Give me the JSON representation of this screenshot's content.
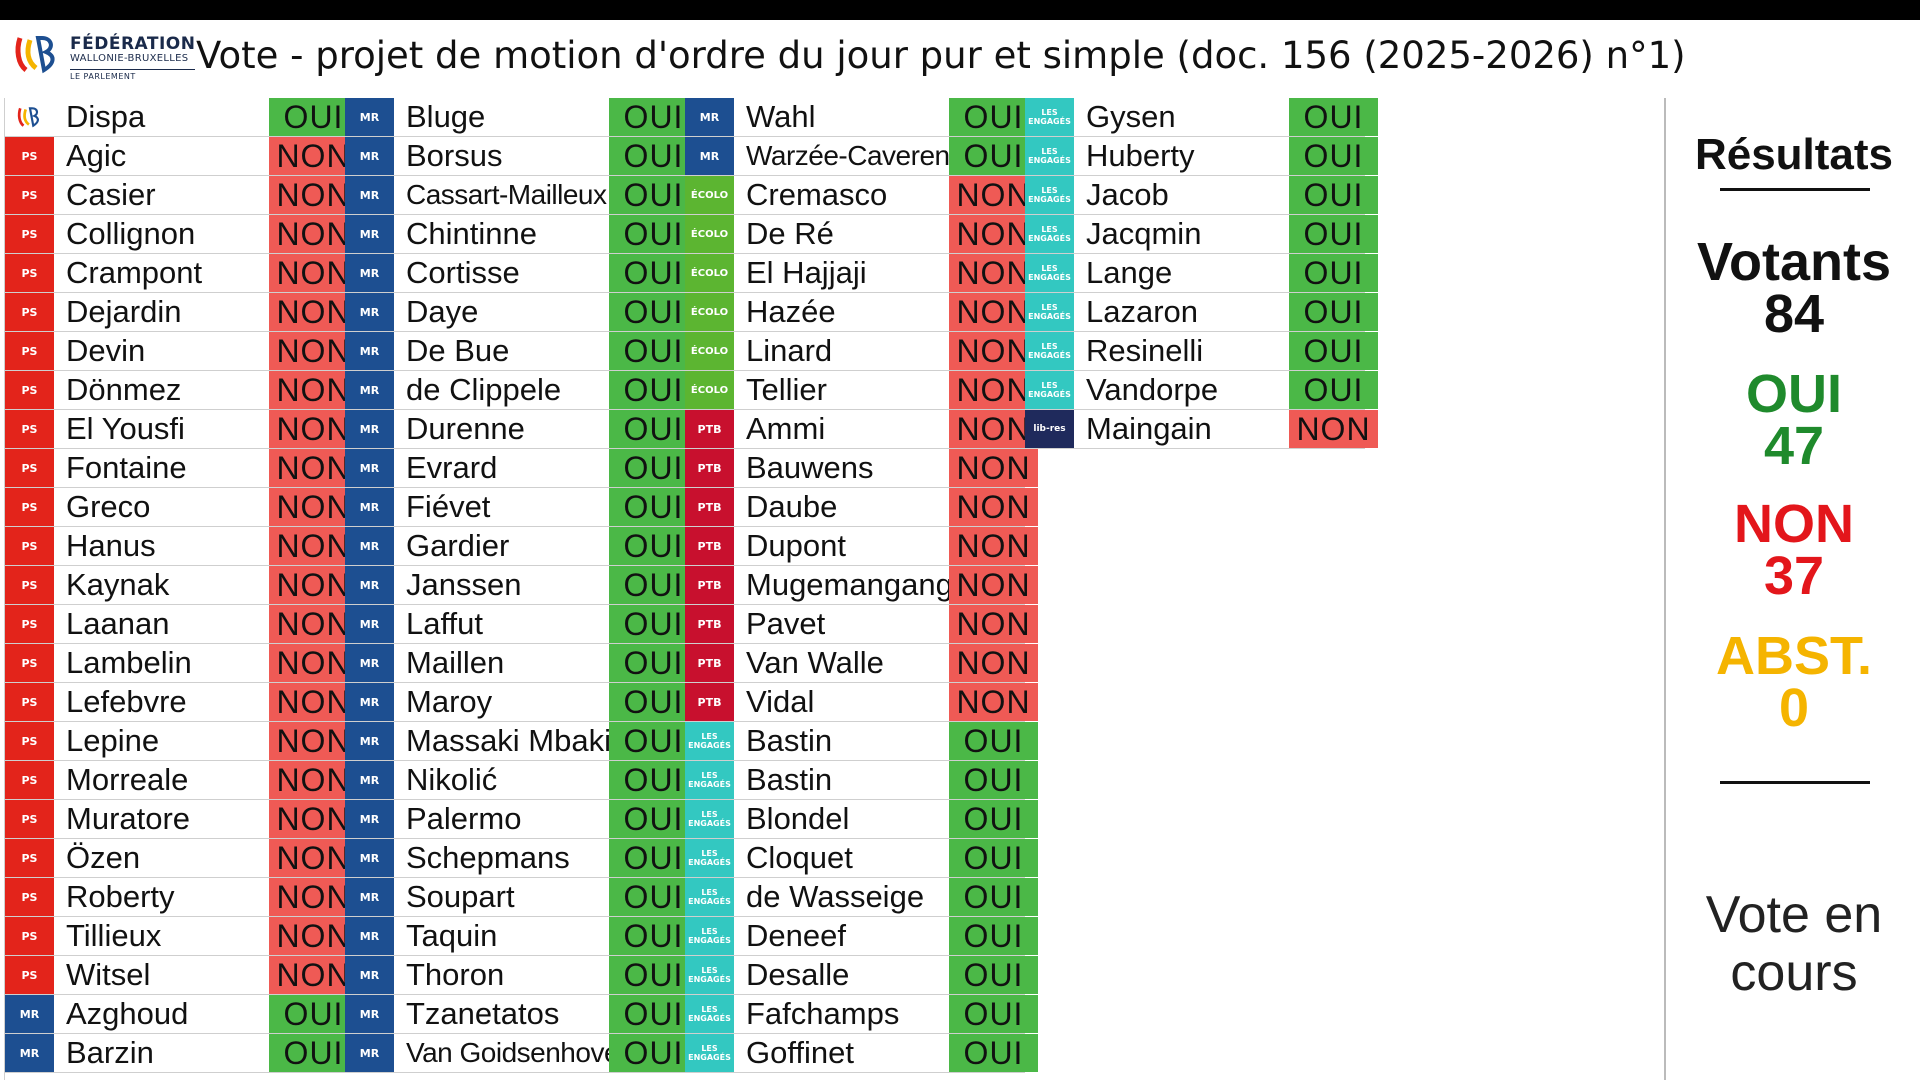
{
  "header": {
    "logo_line1": "FÉDÉRATION",
    "logo_line2": "WALLONIE-BRUXELLES",
    "logo_line3": "LE PARLEMENT",
    "title": "Vote - projet de motion d'ordre du jour pur et simple (doc. 156 (2025-2026) n°1)"
  },
  "parties": {
    "FWB": {
      "label": "",
      "color": "#ffffff",
      "text_color": "#e3241b"
    },
    "PS": {
      "label": "PS",
      "color": "#e3241b",
      "text_color": "#ffffff"
    },
    "MR": {
      "label": "MR",
      "color": "#1d4f91",
      "text_color": "#ffffff"
    },
    "ECOLO": {
      "label": "ÉCOLO",
      "color": "#5cb531",
      "text_color": "#ffffff"
    },
    "PTB": {
      "label": "PTB",
      "color": "#c8102e",
      "text_color": "#ffffff"
    },
    "ENGAGES": {
      "label": "LES ENGAGÉS",
      "color": "#33c8c1",
      "text_color": "#ffffff"
    },
    "LIBRES": {
      "label": "lib-res",
      "color": "#1f2a5c",
      "text_color": "#ffffff"
    }
  },
  "vote_colors": {
    "OUI": "#4bb847",
    "NON": "#ef5a55"
  },
  "columns": [
    [
      {
        "party": "FWB",
        "name": "Dispa",
        "vote": "OUI"
      },
      {
        "party": "PS",
        "name": "Agic",
        "vote": "NON"
      },
      {
        "party": "PS",
        "name": "Casier",
        "vote": "NON"
      },
      {
        "party": "PS",
        "name": "Collignon",
        "vote": "NON"
      },
      {
        "party": "PS",
        "name": "Crampont",
        "vote": "NON"
      },
      {
        "party": "PS",
        "name": "Dejardin",
        "vote": "NON"
      },
      {
        "party": "PS",
        "name": "Devin",
        "vote": "NON"
      },
      {
        "party": "PS",
        "name": "Dönmez",
        "vote": "NON"
      },
      {
        "party": "PS",
        "name": "El Yousfi",
        "vote": "NON"
      },
      {
        "party": "PS",
        "name": "Fontaine",
        "vote": "NON"
      },
      {
        "party": "PS",
        "name": "Greco",
        "vote": "NON"
      },
      {
        "party": "PS",
        "name": "Hanus",
        "vote": "NON"
      },
      {
        "party": "PS",
        "name": "Kaynak",
        "vote": "NON"
      },
      {
        "party": "PS",
        "name": "Laanan",
        "vote": "NON"
      },
      {
        "party": "PS",
        "name": "Lambelin",
        "vote": "NON"
      },
      {
        "party": "PS",
        "name": "Lefebvre",
        "vote": "NON"
      },
      {
        "party": "PS",
        "name": "Lepine",
        "vote": "NON"
      },
      {
        "party": "PS",
        "name": "Morreale",
        "vote": "NON"
      },
      {
        "party": "PS",
        "name": "Muratore",
        "vote": "NON"
      },
      {
        "party": "PS",
        "name": "Özen",
        "vote": "NON"
      },
      {
        "party": "PS",
        "name": "Roberty",
        "vote": "NON"
      },
      {
        "party": "PS",
        "name": "Tillieux",
        "vote": "NON"
      },
      {
        "party": "PS",
        "name": "Witsel",
        "vote": "NON"
      },
      {
        "party": "MR",
        "name": "Azghoud",
        "vote": "OUI"
      },
      {
        "party": "MR",
        "name": "Barzin",
        "vote": "OUI"
      }
    ],
    [
      {
        "party": "MR",
        "name": "Bluge",
        "vote": "OUI"
      },
      {
        "party": "MR",
        "name": "Borsus",
        "vote": "OUI"
      },
      {
        "party": "MR",
        "name": "Cassart-Mailleux",
        "vote": "OUI"
      },
      {
        "party": "MR",
        "name": "Chintinne",
        "vote": "OUI"
      },
      {
        "party": "MR",
        "name": "Cortisse",
        "vote": "OUI"
      },
      {
        "party": "MR",
        "name": "Daye",
        "vote": "OUI"
      },
      {
        "party": "MR",
        "name": "De Bue",
        "vote": "OUI"
      },
      {
        "party": "MR",
        "name": "de Clippele",
        "vote": "OUI"
      },
      {
        "party": "MR",
        "name": "Durenne",
        "vote": "OUI"
      },
      {
        "party": "MR",
        "name": "Evrard",
        "vote": "OUI"
      },
      {
        "party": "MR",
        "name": "Fiévet",
        "vote": "OUI"
      },
      {
        "party": "MR",
        "name": "Gardier",
        "vote": "OUI"
      },
      {
        "party": "MR",
        "name": "Janssen",
        "vote": "OUI"
      },
      {
        "party": "MR",
        "name": "Laffut",
        "vote": "OUI"
      },
      {
        "party": "MR",
        "name": "Maillen",
        "vote": "OUI"
      },
      {
        "party": "MR",
        "name": "Maroy",
        "vote": "OUI"
      },
      {
        "party": "MR",
        "name": "Massaki Mbaki",
        "vote": "OUI"
      },
      {
        "party": "MR",
        "name": "Nikolić",
        "vote": "OUI"
      },
      {
        "party": "MR",
        "name": "Palermo",
        "vote": "OUI"
      },
      {
        "party": "MR",
        "name": "Schepmans",
        "vote": "OUI"
      },
      {
        "party": "MR",
        "name": "Soupart",
        "vote": "OUI"
      },
      {
        "party": "MR",
        "name": "Taquin",
        "vote": "OUI"
      },
      {
        "party": "MR",
        "name": "Thoron",
        "vote": "OUI"
      },
      {
        "party": "MR",
        "name": "Tzanetatos",
        "vote": "OUI"
      },
      {
        "party": "MR",
        "name": "Van Goidsenhoven",
        "vote": "OUI"
      }
    ],
    [
      {
        "party": "MR",
        "name": "Wahl",
        "vote": "OUI"
      },
      {
        "party": "MR",
        "name": "Warzée-Caverenne",
        "vote": "OUI"
      },
      {
        "party": "ECOLO",
        "name": "Cremasco",
        "vote": "NON"
      },
      {
        "party": "ECOLO",
        "name": "De Ré",
        "vote": "NON"
      },
      {
        "party": "ECOLO",
        "name": "El Hajjaji",
        "vote": "NON"
      },
      {
        "party": "ECOLO",
        "name": "Hazée",
        "vote": "NON"
      },
      {
        "party": "ECOLO",
        "name": "Linard",
        "vote": "NON"
      },
      {
        "party": "ECOLO",
        "name": "Tellier",
        "vote": "NON"
      },
      {
        "party": "PTB",
        "name": "Ammi",
        "vote": "NON"
      },
      {
        "party": "PTB",
        "name": "Bauwens",
        "vote": "NON"
      },
      {
        "party": "PTB",
        "name": "Daube",
        "vote": "NON"
      },
      {
        "party": "PTB",
        "name": "Dupont",
        "vote": "NON"
      },
      {
        "party": "PTB",
        "name": "Mugemangango",
        "vote": "NON"
      },
      {
        "party": "PTB",
        "name": "Pavet",
        "vote": "NON"
      },
      {
        "party": "PTB",
        "name": "Van Walle",
        "vote": "NON"
      },
      {
        "party": "PTB",
        "name": "Vidal",
        "vote": "NON"
      },
      {
        "party": "ENGAGES",
        "name": "Bastin",
        "vote": "OUI"
      },
      {
        "party": "ENGAGES",
        "name": "Bastin",
        "vote": "OUI"
      },
      {
        "party": "ENGAGES",
        "name": "Blondel",
        "vote": "OUI"
      },
      {
        "party": "ENGAGES",
        "name": "Cloquet",
        "vote": "OUI"
      },
      {
        "party": "ENGAGES",
        "name": "de Wasseige",
        "vote": "OUI"
      },
      {
        "party": "ENGAGES",
        "name": "Deneef",
        "vote": "OUI"
      },
      {
        "party": "ENGAGES",
        "name": "Desalle",
        "vote": "OUI"
      },
      {
        "party": "ENGAGES",
        "name": "Fafchamps",
        "vote": "OUI"
      },
      {
        "party": "ENGAGES",
        "name": "Goffinet",
        "vote": "OUI"
      }
    ],
    [
      {
        "party": "ENGAGES",
        "name": "Gysen",
        "vote": "OUI"
      },
      {
        "party": "ENGAGES",
        "name": "Huberty",
        "vote": "OUI"
      },
      {
        "party": "ENGAGES",
        "name": "Jacob",
        "vote": "OUI"
      },
      {
        "party": "ENGAGES",
        "name": "Jacqmin",
        "vote": "OUI"
      },
      {
        "party": "ENGAGES",
        "name": "Lange",
        "vote": "OUI"
      },
      {
        "party": "ENGAGES",
        "name": "Lazaron",
        "vote": "OUI"
      },
      {
        "party": "ENGAGES",
        "name": "Resinelli",
        "vote": "OUI"
      },
      {
        "party": "ENGAGES",
        "name": "Vandorpe",
        "vote": "OUI"
      },
      {
        "party": "LIBRES",
        "name": "Maingain",
        "vote": "NON"
      }
    ]
  ],
  "results": {
    "title": "Résultats",
    "voters_label": "Votants",
    "voters_count": "84",
    "yes_label": "OUI",
    "yes_count": "47",
    "yes_color": "#1f8a2c",
    "no_label": "NON",
    "no_count": "37",
    "no_color": "#e3161b",
    "abst_label": "ABST.",
    "abst_count": "0",
    "abst_color": "#f5b400",
    "status_line1": "Vote en",
    "status_line2": "cours"
  }
}
